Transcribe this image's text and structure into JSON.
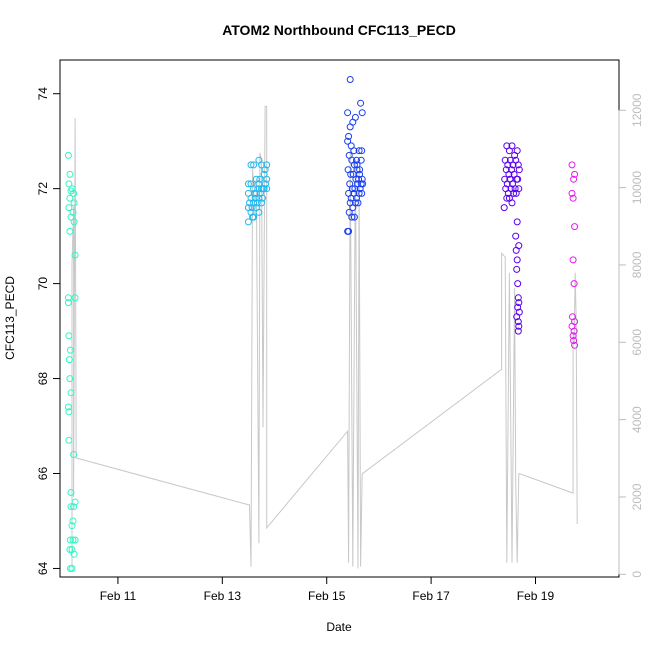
{
  "chart_data": {
    "type": "scatter",
    "title": "ATOM2 Northbound CFC113_PECD",
    "xlabel": "Date",
    "ylabel": "CFC113_PECD",
    "x_unit": "days since Feb 10 00:00",
    "xlim": [
      9.89,
      20.6
    ],
    "ylim": [
      63.82,
      74.71
    ],
    "x_ticks": [
      {
        "label": "Feb 11",
        "value": 11
      },
      {
        "label": "Feb 13",
        "value": 13
      },
      {
        "label": "Feb 15",
        "value": 15
      },
      {
        "label": "Feb 17",
        "value": 17
      },
      {
        "label": "Feb 19",
        "value": 19
      }
    ],
    "y_ticks": [
      64,
      66,
      68,
      70,
      72,
      74
    ],
    "y2_label": "",
    "y2_ticks": [
      0,
      2000,
      4000,
      6000,
      8000,
      10000,
      12000
    ],
    "y2lim": [
      -70,
      13300
    ],
    "series": [
      {
        "color": "#33f5c4",
        "points": [
          [
            10.05,
            72.7
          ],
          [
            10.08,
            72.3
          ],
          [
            10.06,
            72.1
          ],
          [
            10.1,
            71.95
          ],
          [
            10.12,
            72.0
          ],
          [
            10.15,
            71.9
          ],
          [
            10.08,
            71.8
          ],
          [
            10.16,
            71.7
          ],
          [
            10.06,
            71.6
          ],
          [
            10.14,
            71.5
          ],
          [
            10.1,
            71.4
          ],
          [
            10.16,
            71.3
          ],
          [
            10.08,
            71.1
          ],
          [
            10.18,
            70.6
          ],
          [
            10.05,
            69.7
          ],
          [
            10.18,
            69.7
          ],
          [
            10.05,
            69.6
          ],
          [
            10.06,
            68.9
          ],
          [
            10.09,
            68.6
          ],
          [
            10.07,
            68.4
          ],
          [
            10.08,
            68.0
          ],
          [
            10.1,
            67.7
          ],
          [
            10.05,
            67.4
          ],
          [
            10.06,
            67.3
          ],
          [
            10.06,
            66.7
          ],
          [
            10.15,
            66.4
          ],
          [
            10.1,
            65.6
          ],
          [
            10.18,
            65.4
          ],
          [
            10.15,
            65.3
          ],
          [
            10.1,
            65.3
          ],
          [
            10.14,
            65.0
          ],
          [
            10.12,
            64.9
          ],
          [
            10.09,
            64.6
          ],
          [
            10.14,
            64.6
          ],
          [
            10.18,
            64.6
          ],
          [
            10.08,
            64.4
          ],
          [
            10.12,
            64.4
          ],
          [
            10.16,
            64.3
          ],
          [
            10.09,
            64.0
          ],
          [
            10.12,
            64.0
          ]
        ]
      },
      {
        "color": "#1fb8f0",
        "points": [
          [
            13.55,
            72.5
          ],
          [
            13.6,
            72.5
          ],
          [
            13.7,
            72.6
          ],
          [
            13.75,
            72.5
          ],
          [
            13.85,
            72.5
          ],
          [
            13.5,
            72.1
          ],
          [
            13.55,
            72.1
          ],
          [
            13.6,
            72.0
          ],
          [
            13.65,
            72.2
          ],
          [
            13.7,
            72.1
          ],
          [
            13.75,
            72.0
          ],
          [
            13.8,
            72.3
          ],
          [
            13.85,
            72.2
          ],
          [
            13.5,
            71.9
          ],
          [
            13.55,
            71.8
          ],
          [
            13.6,
            71.7
          ],
          [
            13.65,
            71.9
          ],
          [
            13.7,
            71.8
          ],
          [
            13.75,
            71.7
          ],
          [
            13.8,
            72.0
          ],
          [
            13.85,
            72.0
          ],
          [
            13.5,
            71.6
          ],
          [
            13.55,
            71.5
          ],
          [
            13.6,
            71.4
          ],
          [
            13.65,
            71.6
          ],
          [
            13.7,
            71.5
          ],
          [
            13.5,
            71.3
          ],
          [
            13.58,
            71.4
          ],
          [
            13.62,
            71.9
          ],
          [
            13.68,
            72.0
          ],
          [
            13.72,
            72.2
          ],
          [
            13.78,
            72.0
          ],
          [
            13.82,
            72.4
          ],
          [
            13.52,
            71.7
          ],
          [
            13.57,
            71.6
          ],
          [
            13.63,
            71.8
          ],
          [
            13.67,
            71.7
          ],
          [
            13.73,
            71.9
          ],
          [
            13.77,
            71.8
          ],
          [
            13.83,
            72.1
          ]
        ]
      },
      {
        "color": "#1a3ff0",
        "points": [
          [
            15.45,
            74.3
          ],
          [
            15.4,
            73.6
          ],
          [
            15.55,
            73.5
          ],
          [
            15.5,
            73.4
          ],
          [
            15.65,
            73.8
          ],
          [
            15.68,
            73.6
          ],
          [
            15.45,
            73.3
          ],
          [
            15.42,
            73.1
          ],
          [
            15.4,
            73.0
          ],
          [
            15.47,
            72.9
          ],
          [
            15.52,
            72.8
          ],
          [
            15.57,
            72.6
          ],
          [
            15.62,
            72.8
          ],
          [
            15.67,
            72.8
          ],
          [
            15.43,
            72.7
          ],
          [
            15.48,
            72.6
          ],
          [
            15.53,
            72.5
          ],
          [
            15.58,
            72.5
          ],
          [
            15.63,
            72.4
          ],
          [
            15.66,
            72.6
          ],
          [
            15.41,
            72.4
          ],
          [
            15.46,
            72.3
          ],
          [
            15.51,
            72.3
          ],
          [
            15.56,
            72.2
          ],
          [
            15.61,
            72.2
          ],
          [
            15.66,
            72.1
          ],
          [
            15.44,
            72.1
          ],
          [
            15.49,
            72.0
          ],
          [
            15.54,
            72.0
          ],
          [
            15.59,
            72.1
          ],
          [
            15.64,
            72.0
          ],
          [
            15.69,
            72.1
          ],
          [
            15.42,
            71.9
          ],
          [
            15.47,
            71.8
          ],
          [
            15.52,
            71.9
          ],
          [
            15.57,
            71.8
          ],
          [
            15.62,
            71.9
          ],
          [
            15.67,
            71.9
          ],
          [
            15.45,
            71.7
          ],
          [
            15.5,
            71.6
          ],
          [
            15.55,
            71.7
          ],
          [
            15.6,
            71.7
          ],
          [
            15.43,
            71.5
          ],
          [
            15.48,
            71.4
          ],
          [
            15.53,
            71.4
          ],
          [
            15.4,
            71.1
          ],
          [
            15.42,
            71.1
          ],
          [
            15.58,
            72.4
          ],
          [
            15.63,
            72.3
          ],
          [
            15.68,
            72.2
          ]
        ]
      },
      {
        "color": "#5a00f0",
        "points": [
          [
            18.45,
            72.9
          ],
          [
            18.5,
            72.8
          ],
          [
            18.55,
            72.9
          ],
          [
            18.6,
            72.7
          ],
          [
            18.65,
            72.8
          ],
          [
            18.42,
            72.6
          ],
          [
            18.47,
            72.5
          ],
          [
            18.52,
            72.6
          ],
          [
            18.57,
            72.5
          ],
          [
            18.62,
            72.6
          ],
          [
            18.67,
            72.5
          ],
          [
            18.44,
            72.4
          ],
          [
            18.49,
            72.3
          ],
          [
            18.54,
            72.4
          ],
          [
            18.59,
            72.3
          ],
          [
            18.64,
            72.2
          ],
          [
            18.69,
            72.4
          ],
          [
            18.41,
            72.2
          ],
          [
            18.46,
            72.1
          ],
          [
            18.51,
            72.2
          ],
          [
            18.56,
            72.1
          ],
          [
            18.61,
            72.0
          ],
          [
            18.66,
            72.2
          ],
          [
            18.43,
            72.0
          ],
          [
            18.48,
            71.9
          ],
          [
            18.53,
            72.0
          ],
          [
            18.58,
            71.9
          ],
          [
            18.63,
            71.9
          ],
          [
            18.68,
            72.0
          ],
          [
            18.45,
            71.8
          ],
          [
            18.5,
            71.8
          ],
          [
            18.4,
            71.6
          ],
          [
            18.55,
            71.7
          ],
          [
            18.65,
            71.3
          ],
          [
            18.62,
            71.0
          ],
          [
            18.68,
            70.8
          ],
          [
            18.63,
            70.7
          ],
          [
            18.65,
            70.5
          ],
          [
            18.64,
            70.3
          ],
          [
            18.66,
            70.0
          ],
          [
            18.67,
            69.7
          ],
          [
            18.68,
            69.6
          ],
          [
            18.66,
            69.5
          ],
          [
            18.69,
            69.4
          ],
          [
            18.64,
            69.3
          ],
          [
            18.67,
            69.2
          ],
          [
            18.68,
            69.1
          ],
          [
            18.67,
            69.0
          ]
        ]
      },
      {
        "color": "#e61af0",
        "points": [
          [
            19.7,
            72.5
          ],
          [
            19.75,
            72.3
          ],
          [
            19.73,
            72.2
          ],
          [
            19.7,
            71.9
          ],
          [
            19.72,
            71.8
          ],
          [
            19.75,
            71.2
          ],
          [
            19.72,
            70.5
          ],
          [
            19.74,
            70.0
          ],
          [
            19.71,
            69.3
          ],
          [
            19.75,
            69.2
          ],
          [
            19.7,
            69.1
          ],
          [
            19.74,
            69.0
          ],
          [
            19.72,
            68.9
          ],
          [
            19.73,
            68.8
          ],
          [
            19.75,
            68.7
          ]
        ]
      }
    ],
    "secondary_line": {
      "color": "#c8c8c8",
      "points": [
        [
          10.12,
          200
        ],
        [
          10.12,
          8000
        ],
        [
          10.15,
          9500
        ],
        [
          10.15,
          2000
        ],
        [
          10.18,
          11600
        ],
        [
          10.18,
          11800
        ],
        [
          10.2,
          3000
        ],
        [
          10.22,
          3000
        ],
        [
          13.5,
          1800
        ],
        [
          13.52,
          1800
        ],
        [
          13.55,
          200
        ],
        [
          13.58,
          10500
        ],
        [
          13.6,
          10000
        ],
        [
          13.65,
          10200
        ],
        [
          13.7,
          800
        ],
        [
          13.72,
          10900
        ],
        [
          13.75,
          10700
        ],
        [
          13.78,
          3800
        ],
        [
          13.82,
          12100
        ],
        [
          13.85,
          12100
        ],
        [
          13.85,
          1200
        ],
        [
          15.4,
          3700
        ],
        [
          15.42,
          300
        ],
        [
          15.45,
          11000
        ],
        [
          15.5,
          200
        ],
        [
          15.55,
          10700
        ],
        [
          15.6,
          150
        ],
        [
          15.62,
          10400
        ],
        [
          15.65,
          200
        ],
        [
          15.68,
          2600
        ],
        [
          18.35,
          5300
        ],
        [
          18.35,
          8300
        ],
        [
          18.42,
          8200
        ],
        [
          18.45,
          300
        ],
        [
          18.5,
          7800
        ],
        [
          18.55,
          300
        ],
        [
          18.6,
          7400
        ],
        [
          18.62,
          2400
        ],
        [
          18.65,
          300
        ],
        [
          18.68,
          2600
        ],
        [
          18.7,
          2600
        ],
        [
          19.72,
          2100
        ],
        [
          19.72,
          6200
        ],
        [
          19.74,
          6000
        ],
        [
          19.76,
          7800
        ],
        [
          19.78,
          6500
        ],
        [
          19.8,
          1300
        ]
      ]
    }
  }
}
